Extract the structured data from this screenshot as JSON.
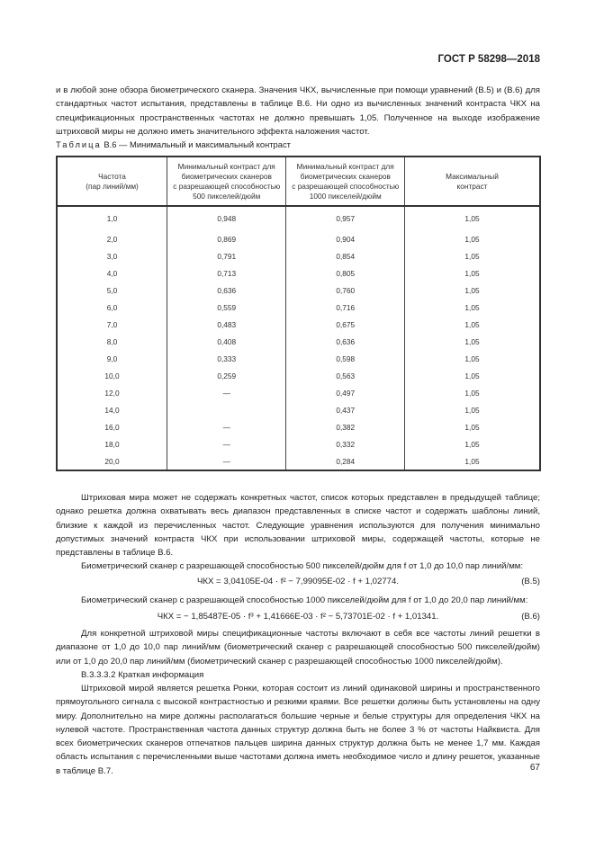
{
  "header": {
    "doc_id": "ГОСТ Р 58298—2018"
  },
  "intro_paragraph": "и в любой зоне обзора биометрического сканера. Значения ЧКХ, вычисленные при помощи уравнений (В.5) и (В.6) для стандартных частот испытания, представлены в таблице В.6. Ни одно из вычисленных значений контраста ЧКХ на спецификационных пространственных частотах не должно превышать 1,05. Полученное на выходе изображение штриховой миры не должно иметь значительного эффекта наложения частот.",
  "table": {
    "caption_label": "Таблица",
    "caption_text": "В.6 — Минимальный и максимальный контраст",
    "headers": [
      "Частота\n(пар линий/мм)",
      "Минимальный контраст для\nбиометрических сканеров\nс разрешающей способностью\n500 пикселей/дюйм",
      "Минимальный контраст для\nбиометрических сканеров\nс разрешающей способностью\n1000 пикселей/дюйм",
      "Максимальный\nконтраст"
    ],
    "rows": [
      [
        "1,0",
        "0,948",
        "0,957",
        "1,05"
      ],
      [
        "2,0",
        "0,869",
        "0,904",
        "1,05"
      ],
      [
        "3,0",
        "0,791",
        "0,854",
        "1,05"
      ],
      [
        "4,0",
        "0,713",
        "0,805",
        "1,05"
      ],
      [
        "5,0",
        "0,636",
        "0,760",
        "1,05"
      ],
      [
        "6,0",
        "0,559",
        "0,716",
        "1,05"
      ],
      [
        "7,0",
        "0,483",
        "0,675",
        "1,05"
      ],
      [
        "8,0",
        "0,408",
        "0,636",
        "1,05"
      ],
      [
        "9,0",
        "0,333",
        "0,598",
        "1,05"
      ],
      [
        "10,0",
        "0,259",
        "0,563",
        "1,05"
      ],
      [
        "12,0",
        "—",
        "0,497",
        "1,05"
      ],
      [
        "14,0",
        "",
        "0,437",
        "1,05"
      ],
      [
        "16,0",
        "—",
        "0,382",
        "1,05"
      ],
      [
        "18,0",
        "—",
        "0,332",
        "1,05"
      ],
      [
        "20,0",
        "—",
        "0,284",
        "1,05"
      ]
    ]
  },
  "para2": "Штриховая мира может не содержать конкретных частот, список которых представлен в предыдущей таблице; однако решетка должна охватывать весь диапазон представленных в списке частот и содержать шаблоны линий, близкие к каждой из перечисленных частот. Следующие уравнения используются для получения минимально допустимых значений контраста ЧКХ при использовании штриховой миры, содержащей частоты, которые не представлены в таблице В.6.",
  "eq5_intro": "Биометрический сканер с разрешающей способностью 500 пикселей/дюйм для f от 1,0 до 10,0 пар линий/мм:",
  "eq5": "ЧКХ = 3,04105E-04 · f² − 7,99095E-02 · f + 1,02774.",
  "eq5_num": "(В.5)",
  "eq6_intro": "Биометрический сканер с разрешающей способностью 1000 пикселей/дюйм для f от 1,0 до 20,0 пар линий/мм:",
  "eq6": "ЧКХ = − 1,85487E-05 · f³ + 1,41666E-03 · f² − 5,73701E-02 · f + 1,01341.",
  "eq6_num": "(В.6)",
  "para3": "Для конкретной штриховой миры спецификационные частоты включают в себя все частоты линий решетки в диапазоне от 1,0 до 10,0 пар линий/мм (биометрический сканер с разрешающей способностью 500 пикселей/дюйм) или от 1,0 до 20,0 пар линий/мм (биометрический сканер с разрешающей способностью 1000 пикселей/дюйм).",
  "section_heading": "В.3.3.3.2 Краткая информация",
  "para4": "Штриховой мирой является решетка Ронки, которая состоит из линий одинаковой ширины и пространственного прямоугольного сигнала с высокой контрастностью и резкими краями. Все решетки должны быть установлены на одну миру. Дополнительно на мире должны располагаться большие черные и белые структуры для определения ЧКХ на нулевой частоте. Пространственная частота данных структур должна быть не более 3 % от частоты Найквиста. Для всех биометрических сканеров отпечатков пальцев ширина данных структур должна быть не менее 1,7 мм. Каждая область испытания с перечисленными выше частотами должна иметь необходимое число и длину решеток, указанные в таблице В.7.",
  "page_number": "67"
}
